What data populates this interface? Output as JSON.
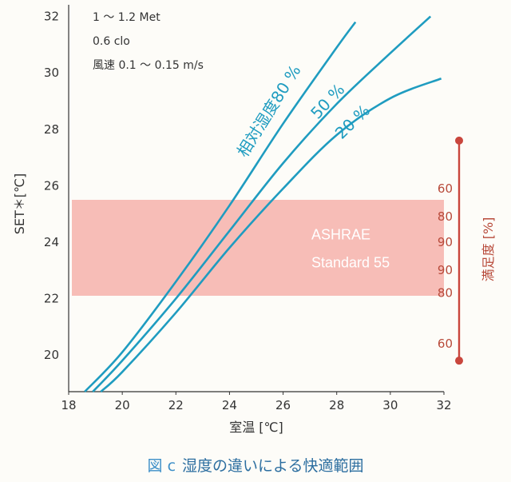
{
  "chart_data": {
    "type": "line",
    "xlabel": "室温 [℃]",
    "ylabel": "SET＊[℃]",
    "xlim": [
      18,
      32
    ],
    "ylim": [
      18.7,
      32.3
    ],
    "xticks": [
      18,
      20,
      22,
      24,
      26,
      28,
      30,
      32
    ],
    "yticks": [
      20,
      22,
      24,
      26,
      28,
      30,
      32
    ],
    "conditions": [
      "1 ～ 1.2 Met",
      "0.6 clo",
      "風速 0.1 ～ 0.15 m/s"
    ],
    "series_label_prefix": "相対湿度",
    "series": [
      {
        "name": "80 %",
        "x": [
          18.6,
          20,
          22,
          24,
          26,
          28,
          28.7
        ],
        "y": [
          18.7,
          20.1,
          22.6,
          25.3,
          28.2,
          30.9,
          31.8
        ]
      },
      {
        "name": "50 %",
        "x": [
          18.9,
          20,
          22,
          24,
          26,
          28,
          30,
          31.5
        ],
        "y": [
          18.7,
          19.8,
          22.0,
          24.4,
          26.8,
          28.9,
          30.7,
          32.0
        ]
      },
      {
        "name": "20 %",
        "x": [
          19.2,
          20,
          22,
          24,
          26,
          28,
          30,
          31.9
        ],
        "y": [
          18.7,
          19.4,
          21.5,
          23.8,
          25.9,
          27.8,
          29.1,
          29.8
        ]
      }
    ],
    "comfort_band": {
      "ymin": 22.1,
      "ymax": 25.5,
      "label": [
        "ASHRAE",
        "Standard 55"
      ],
      "color": "#f6b2ab"
    },
    "satisfaction_axis": {
      "label": "満足度 [%]",
      "color": "#c9463d",
      "ticks": [
        {
          "set": 25.9,
          "label": "60"
        },
        {
          "set": 24.9,
          "label": "80"
        },
        {
          "set": 24.0,
          "label": "90"
        },
        {
          "set": 23.0,
          "label": "90"
        },
        {
          "set": 22.2,
          "label": "80"
        },
        {
          "set": 20.4,
          "label": "60"
        }
      ],
      "range": [
        19.8,
        27.6
      ]
    },
    "line_color": "#1f9cc0"
  },
  "caption": {
    "fig": "図 c",
    "text": "湿度の違いによる快適範囲"
  }
}
